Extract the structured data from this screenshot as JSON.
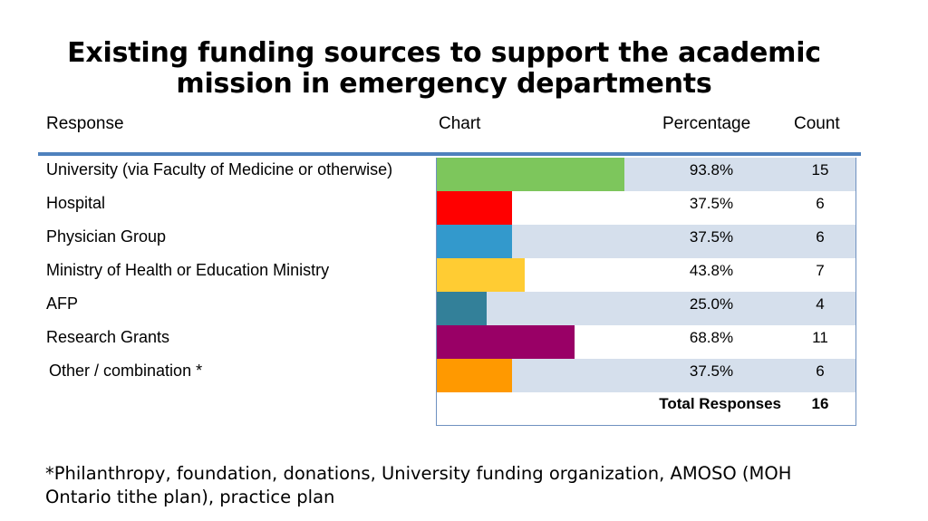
{
  "title": "Existing funding sources to support the academic mission in emergency departments",
  "headers": {
    "response": "Response",
    "chart": "Chart",
    "percentage": "Percentage",
    "count": "Count"
  },
  "rows": [
    {
      "label": "University (via Faculty of Medicine or otherwise)",
      "percent": "93.8%",
      "count": "15",
      "color": "#7dc65c"
    },
    {
      "label": "Hospital",
      "percent": "37.5%",
      "count": "6",
      "color": "#ff0000"
    },
    {
      "label": "Physician Group",
      "percent": "37.5%",
      "count": "6",
      "color": "#3399cc"
    },
    {
      "label": "Ministry of Health or Education Ministry",
      "percent": "43.8%",
      "count": "7",
      "color": "#ffcc33"
    },
    {
      "label": "AFP",
      "percent": "25.0%",
      "count": "4",
      "color": "#338099"
    },
    {
      "label": "Research Grants",
      "percent": "68.8%",
      "count": "11",
      "color": "#990066"
    },
    {
      "label": "Other / combination *",
      "percent": "37.5%",
      "count": "6",
      "color": "#ff9900"
    }
  ],
  "total": {
    "label": "Total Responses",
    "count": "16"
  },
  "footnote": "*Philanthropy, foundation, donations, University funding organization, AMOSO (MOH Ontario tithe plan), practice plan",
  "chart_data": {
    "type": "bar",
    "categories": [
      "University (via Faculty of Medicine or otherwise)",
      "Hospital",
      "Physician Group",
      "Ministry of Health or Education Ministry",
      "AFP",
      "Research Grants",
      "Other / combination *"
    ],
    "values": [
      15,
      6,
      6,
      7,
      4,
      11,
      6
    ],
    "percentages": [
      93.8,
      37.5,
      37.5,
      43.8,
      25.0,
      68.8,
      37.5
    ]
  }
}
